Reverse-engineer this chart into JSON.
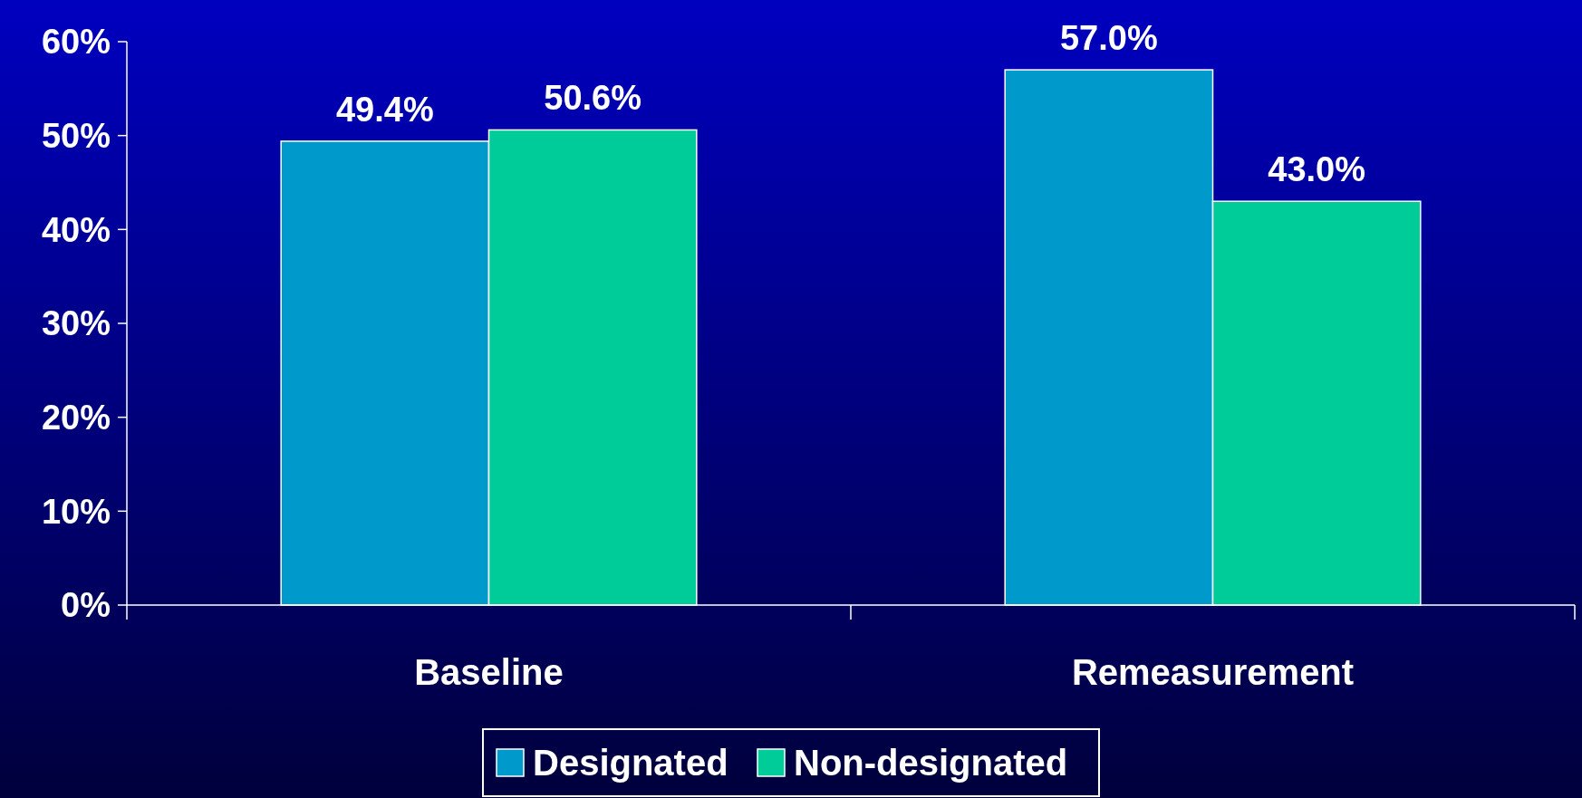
{
  "chart_data": {
    "type": "bar",
    "categories": [
      "Baseline",
      "Remeasurement"
    ],
    "series": [
      {
        "name": "Designated",
        "color": "#0099cc",
        "values": [
          49.4,
          57.0
        ],
        "value_labels": [
          "49.4%",
          "57.0%"
        ]
      },
      {
        "name": "Non-designated",
        "color": "#00cc99",
        "values": [
          50.6,
          43.0
        ],
        "value_labels": [
          "50.6%",
          "43.0%"
        ]
      }
    ],
    "ylim": [
      0,
      60
    ],
    "yticks": [
      {
        "value": 0,
        "label": "0%"
      },
      {
        "value": 10,
        "label": "10%"
      },
      {
        "value": 20,
        "label": "20%"
      },
      {
        "value": 30,
        "label": "30%"
      },
      {
        "value": 40,
        "label": "40%"
      },
      {
        "value": 50,
        "label": "50%"
      },
      {
        "value": 60,
        "label": "60%"
      }
    ],
    "grid": false,
    "legend": "bottom"
  }
}
